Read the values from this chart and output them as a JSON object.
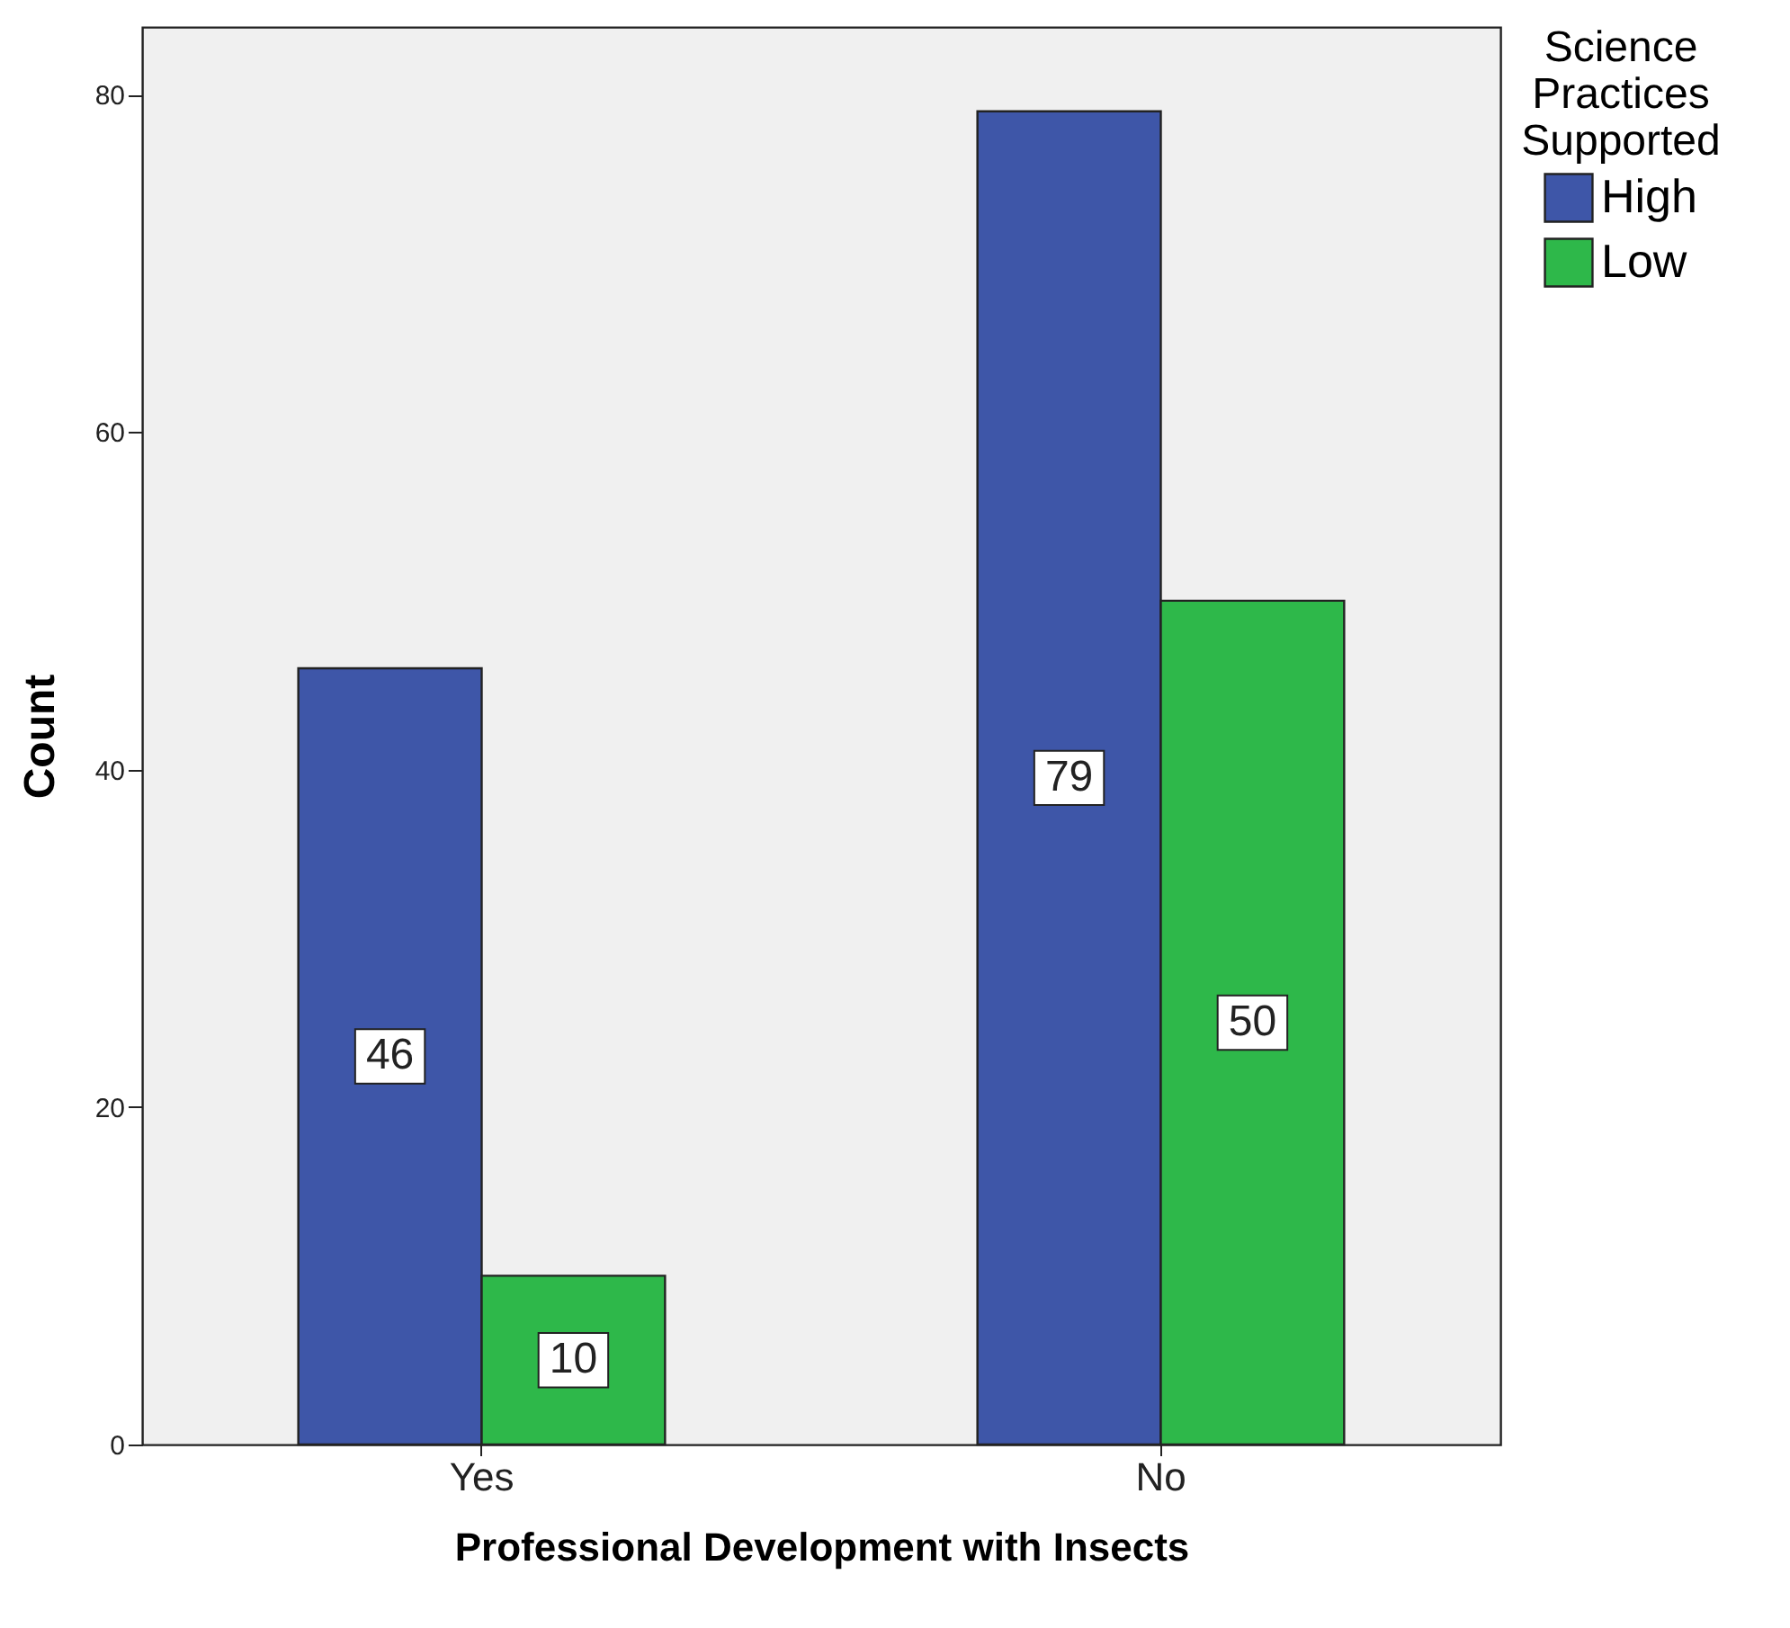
{
  "chart_data": {
    "type": "bar",
    "xlabel": "Professional Development with Insects",
    "ylabel": "Count",
    "legend_title": "Science Practices Supported",
    "categories": [
      "Yes",
      "No"
    ],
    "series": [
      {
        "name": "High",
        "color": "#3e56a8",
        "values": [
          46,
          79
        ]
      },
      {
        "name": "Low",
        "color": "#2eb84a",
        "values": [
          10,
          50
        ]
      }
    ],
    "ylim": [
      0,
      84
    ],
    "yticks": [
      0,
      20,
      40,
      60,
      80
    ],
    "data_labels": true,
    "legend": "top right",
    "grid": false
  }
}
